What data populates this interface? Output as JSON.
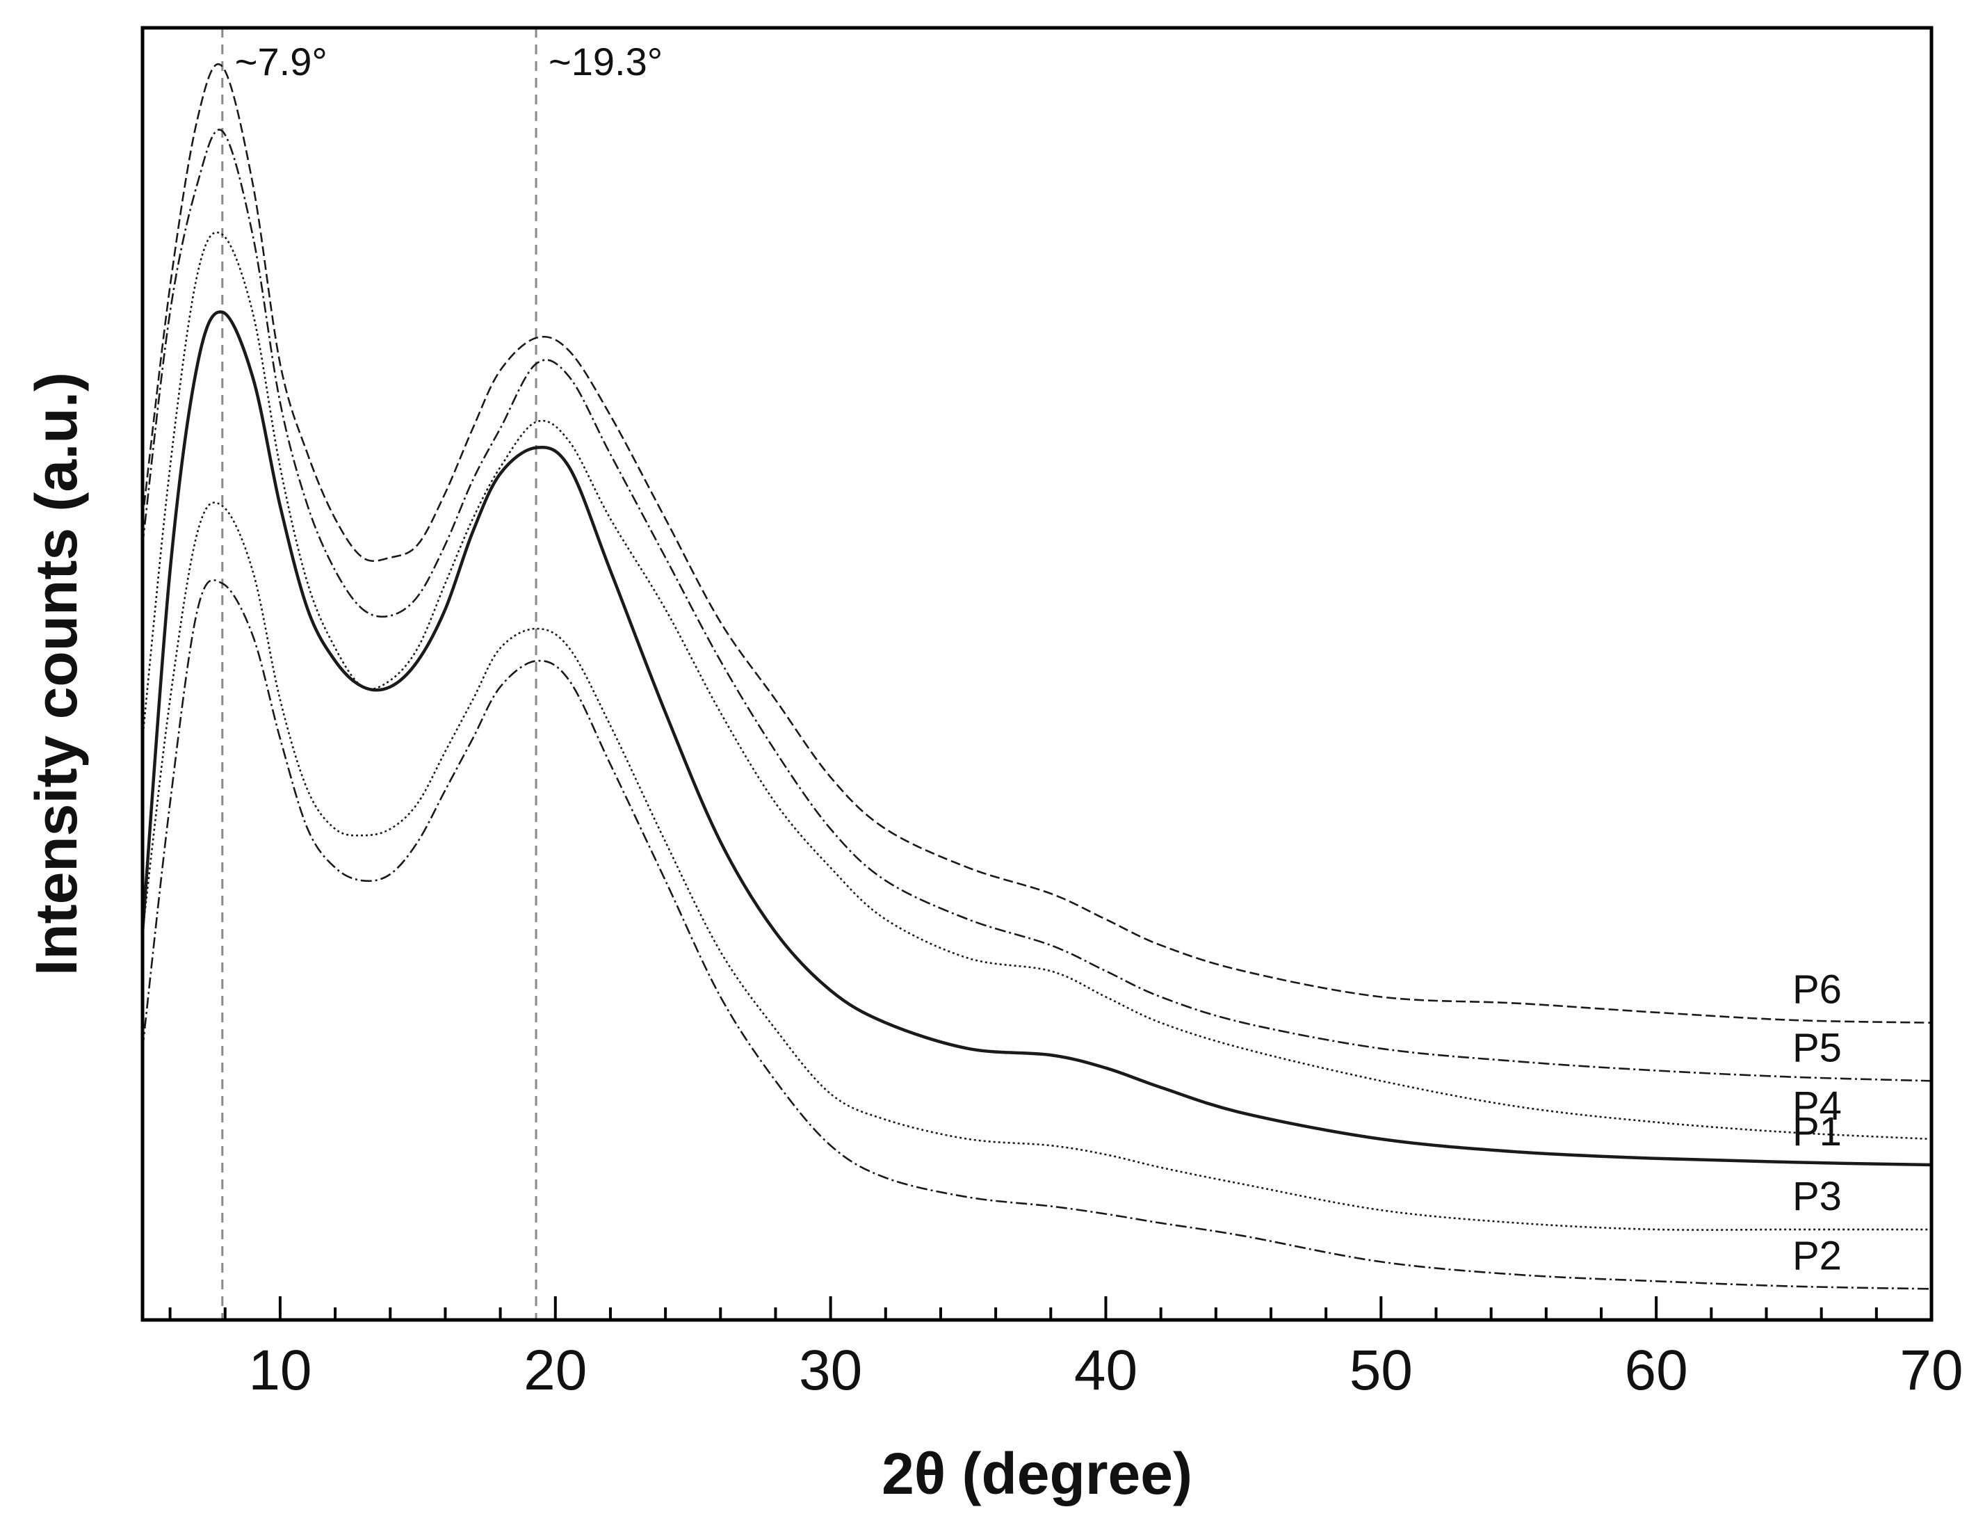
{
  "chart_data": {
    "type": "line",
    "title": "",
    "xlabel": "2θ (degree)",
    "ylabel": "Intensity counts (a.u.)",
    "xlim": [
      5,
      70
    ],
    "ylim": [
      0,
      100
    ],
    "x_ticks": [
      10,
      20,
      30,
      40,
      50,
      60,
      70
    ],
    "x_tick_labels": [
      "10",
      "20",
      "30",
      "40",
      "50",
      "60",
      "70"
    ],
    "x_minor_step": 2,
    "y_ticks_shown": false,
    "grid": false,
    "reference_lines": [
      {
        "x": 7.9,
        "label": "~7.9°",
        "style": "dashed"
      },
      {
        "x": 19.3,
        "label": "~19.3°",
        "style": "dashed"
      }
    ],
    "series": [
      {
        "name": "P6",
        "line_style": "dashed",
        "x": [
          5,
          6,
          7,
          7.9,
          9,
          10,
          11,
          12,
          13,
          14,
          15,
          16,
          17,
          18,
          19.3,
          20.5,
          22,
          24,
          26,
          28,
          30,
          32,
          35,
          38,
          40,
          42,
          45,
          50,
          55,
          60,
          65,
          70
        ],
        "y": [
          62,
          80,
          93,
          97,
          88,
          74,
          67,
          62,
          59,
          59,
          60,
          64,
          69,
          73.5,
          76,
          75,
          70,
          62,
          54,
          48,
          42,
          38,
          35,
          33,
          31,
          29,
          27,
          25,
          24.5,
          23.8,
          23.2,
          23
        ]
      },
      {
        "name": "P5",
        "line_style": "dash-dot",
        "x": [
          5,
          6,
          7,
          7.9,
          9,
          10,
          11,
          12,
          13,
          14,
          15,
          16,
          17,
          18,
          19.3,
          20.5,
          22,
          24,
          26,
          28,
          30,
          32,
          35,
          38,
          40,
          42,
          45,
          50,
          55,
          60,
          65,
          70
        ],
        "y": [
          60,
          78,
          88,
          92,
          84,
          71,
          63,
          58,
          55,
          54.5,
          56,
          60,
          65,
          69,
          74,
          73,
          67,
          59,
          51,
          44,
          38,
          34,
          31,
          29,
          27,
          25,
          23,
          21,
          20,
          19.3,
          18.8,
          18.5
        ]
      },
      {
        "name": "P4",
        "line_style": "dotted",
        "x": [
          5,
          6,
          7,
          7.9,
          9,
          10,
          11,
          12,
          13,
          14,
          15,
          16,
          17,
          18,
          19.3,
          20.5,
          22,
          24,
          26,
          28,
          30,
          32,
          35,
          38,
          40,
          42,
          45,
          50,
          55,
          60,
          65,
          70
        ],
        "y": [
          45,
          66,
          81,
          84,
          78,
          66,
          57,
          52,
          49,
          49.5,
          52,
          57,
          62,
          66,
          69.5,
          68,
          62,
          55,
          47,
          40,
          35,
          31,
          28,
          27,
          25,
          23,
          21,
          18.5,
          16.5,
          15.3,
          14.5,
          14
        ]
      },
      {
        "name": "P1",
        "line_style": "solid",
        "x": [
          5,
          6,
          7,
          7.9,
          9,
          10,
          11,
          12,
          13,
          14,
          15,
          16,
          17,
          18,
          19.3,
          20.5,
          22,
          24,
          26,
          28,
          30,
          32,
          35,
          38,
          40,
          42,
          45,
          50,
          55,
          60,
          65,
          70
        ],
        "y": [
          30,
          58,
          74,
          78,
          73,
          63,
          55,
          51,
          49,
          49,
          51,
          55,
          61,
          65.5,
          67.5,
          66,
          58,
          47,
          37,
          30,
          25.5,
          23,
          21,
          20.5,
          19.5,
          18,
          16,
          14,
          13,
          12.5,
          12.2,
          12
        ]
      },
      {
        "name": "P3",
        "line_style": "dotted",
        "x": [
          5,
          6,
          7,
          7.9,
          9,
          10,
          11,
          12,
          13,
          14,
          15,
          16,
          17,
          18,
          19.3,
          20.5,
          22,
          24,
          26,
          28,
          30,
          32,
          35,
          38,
          40,
          42,
          45,
          50,
          55,
          60,
          65,
          70
        ],
        "y": [
          30,
          48,
          61,
          63,
          58,
          48,
          41,
          38,
          37.5,
          38,
          40,
          44,
          48,
          52,
          53.5,
          52,
          46,
          37,
          28.5,
          22.5,
          17.5,
          15.5,
          14,
          13.5,
          12.8,
          11.8,
          10.5,
          8.5,
          7.5,
          7,
          7,
          7
        ]
      },
      {
        "name": "P2",
        "line_style": "dash-dot",
        "x": [
          5,
          6,
          7,
          7.9,
          9,
          10,
          11,
          12,
          13,
          14,
          15,
          16,
          17,
          18,
          19.3,
          20.5,
          22,
          24,
          26,
          28,
          30,
          32,
          35,
          38,
          40,
          42,
          45,
          50,
          55,
          60,
          65,
          70
        ],
        "y": [
          21,
          40,
          55,
          57,
          53,
          45,
          38,
          35,
          34,
          34.5,
          37,
          41,
          45,
          49,
          51,
          49.5,
          43,
          34,
          25,
          18.5,
          13.5,
          11,
          9.5,
          8.8,
          8.2,
          7.5,
          6.5,
          4.5,
          3.5,
          3,
          2.6,
          2.4
        ]
      }
    ]
  }
}
